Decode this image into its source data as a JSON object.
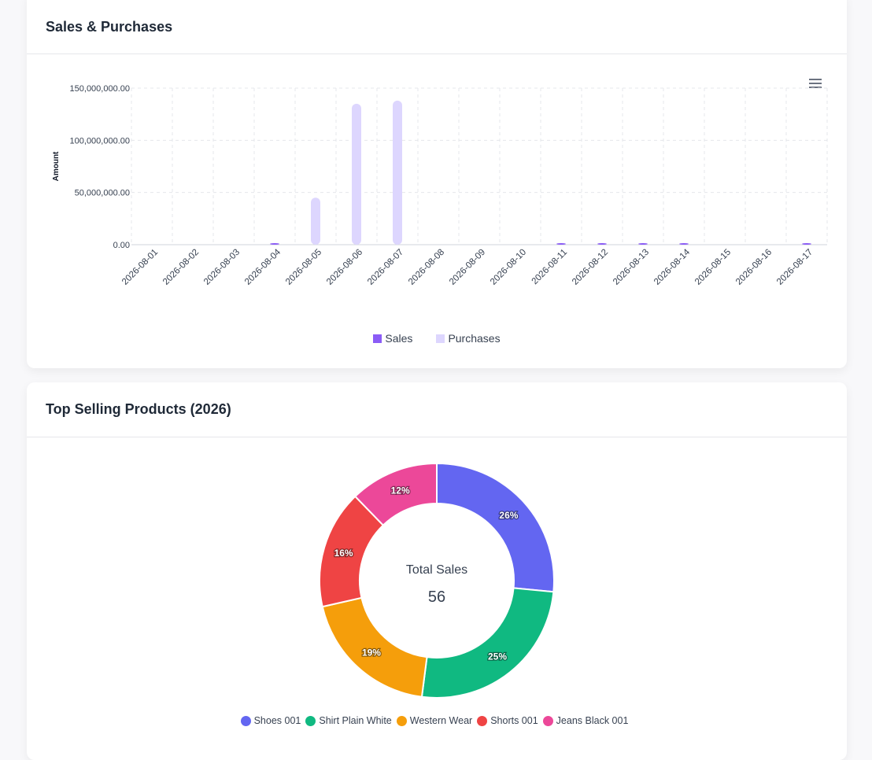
{
  "cards": {
    "sales": {
      "title": "Sales & Purchases"
    },
    "top": {
      "title": "Top Selling Products (2026)"
    }
  },
  "chart_data": [
    {
      "type": "bar",
      "ylabel": "Amount",
      "ylim": [
        0,
        150000000
      ],
      "yticks": [
        "0.00",
        "50,000,000.00",
        "100,000,000.00",
        "150,000,000.00"
      ],
      "categories": [
        "2026-08-01",
        "2026-08-02",
        "2026-08-03",
        "2026-08-04",
        "2026-08-05",
        "2026-08-06",
        "2026-08-07",
        "2026-08-08",
        "2026-08-09",
        "2026-08-10",
        "2026-08-11",
        "2026-08-12",
        "2026-08-13",
        "2026-08-14",
        "2026-08-15",
        "2026-08-16",
        "2026-08-17"
      ],
      "series": [
        {
          "name": "Sales",
          "color": "#8b5cf6",
          "values": [
            0,
            0,
            0,
            300000,
            0,
            0,
            0,
            0,
            0,
            0,
            300000,
            300000,
            300000,
            300000,
            0,
            0,
            300000
          ]
        },
        {
          "name": "Purchases",
          "color": "#ddd6fe",
          "values": [
            0,
            0,
            0,
            0,
            45000000,
            135000000,
            138000000,
            0,
            0,
            0,
            0,
            0,
            0,
            0,
            0,
            0,
            0
          ]
        }
      ],
      "grid": true,
      "legend": "bottom-center"
    },
    {
      "type": "pie",
      "center_label": "Total Sales",
      "center_value": "56",
      "slices": [
        {
          "label": "Shoes 001",
          "percent": 26,
          "color": "#6366f1"
        },
        {
          "label": "Shirt Plain White",
          "percent": 25,
          "color": "#10b981"
        },
        {
          "label": "Western Wear",
          "percent": 19,
          "color": "#f59e0b"
        },
        {
          "label": "Shorts 001",
          "percent": 16,
          "color": "#ef4444"
        },
        {
          "label": "Jeans Black 001",
          "percent": 12,
          "color": "#ec4899"
        }
      ],
      "legend": "bottom-center"
    }
  ]
}
